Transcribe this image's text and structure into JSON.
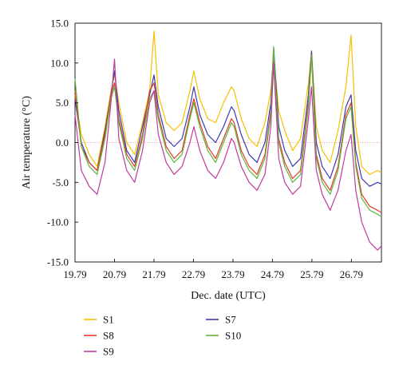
{
  "chart_data": {
    "type": "line",
    "xlabel": "Dec. date (UTC)",
    "ylabel": "Air temperature (°C)",
    "xlim": [
      19.79,
      27.55
    ],
    "ylim": [
      -15.0,
      15.0
    ],
    "x_ticks": [
      19.79,
      20.79,
      21.79,
      22.79,
      23.79,
      24.79,
      25.79,
      26.79
    ],
    "x_tick_labels": [
      "19.79",
      "20.79",
      "21.79",
      "22.79",
      "23.79",
      "24.79",
      "25.79",
      "26.79"
    ],
    "y_ticks": [
      15,
      10,
      5,
      0,
      -5,
      -10,
      -15
    ],
    "y_tick_labels": [
      "15.0",
      "10.0",
      "5.0",
      "0.0",
      "-5.0",
      "-10.0",
      "-15.0"
    ],
    "zero_line": true,
    "grid": false,
    "legend_position": "bottom",
    "x": [
      19.79,
      19.95,
      20.15,
      20.35,
      20.55,
      20.7,
      20.79,
      20.9,
      21.1,
      21.3,
      21.5,
      21.68,
      21.79,
      21.9,
      22.1,
      22.3,
      22.5,
      22.7,
      22.8,
      22.95,
      23.15,
      23.35,
      23.55,
      23.75,
      23.82,
      24.0,
      24.2,
      24.4,
      24.6,
      24.75,
      24.82,
      24.95,
      25.1,
      25.3,
      25.5,
      25.7,
      25.78,
      25.9,
      26.05,
      26.25,
      26.45,
      26.65,
      26.78,
      26.9,
      27.05,
      27.25,
      27.45,
      27.55
    ],
    "series": [
      {
        "name": "S1",
        "color": "#f5c000",
        "values": [
          6.0,
          1.0,
          -1.5,
          -3.0,
          2.0,
          6.5,
          8.5,
          5.0,
          0.0,
          -1.5,
          2.5,
          6.5,
          14.0,
          6.0,
          2.5,
          1.5,
          2.5,
          6.5,
          9.0,
          5.5,
          3.0,
          2.5,
          5.0,
          7.0,
          6.5,
          3.0,
          0.5,
          -0.5,
          2.5,
          6.5,
          11.0,
          4.0,
          1.5,
          -1.0,
          0.5,
          7.5,
          11.5,
          2.0,
          -1.0,
          -2.5,
          1.5,
          7.0,
          13.5,
          2.0,
          -3.0,
          -4.0,
          -3.5,
          -3.8
        ]
      },
      {
        "name": "S7",
        "color": "#3a3ab0",
        "values": [
          5.5,
          0.0,
          -2.5,
          -3.5,
          1.5,
          6.0,
          9.0,
          4.0,
          -1.0,
          -2.5,
          2.0,
          6.0,
          8.5,
          4.5,
          0.5,
          -0.5,
          0.5,
          4.5,
          7.0,
          3.5,
          1.0,
          0.0,
          2.0,
          4.5,
          4.0,
          1.0,
          -1.5,
          -2.5,
          0.0,
          5.0,
          12.0,
          2.0,
          -1.0,
          -3.0,
          -2.0,
          6.0,
          11.5,
          0.0,
          -3.0,
          -4.5,
          -1.5,
          4.5,
          6.0,
          -1.0,
          -4.5,
          -5.5,
          -5.0,
          -5.2
        ]
      },
      {
        "name": "S8",
        "color": "#e03c28",
        "values": [
          6.5,
          -0.5,
          -2.5,
          -3.5,
          1.0,
          6.0,
          7.5,
          3.0,
          -1.5,
          -3.0,
          1.0,
          6.5,
          7.5,
          3.5,
          -0.5,
          -2.0,
          -1.0,
          3.5,
          5.5,
          2.5,
          -0.5,
          -2.0,
          0.5,
          3.0,
          2.5,
          -1.0,
          -3.0,
          -4.0,
          -1.5,
          4.0,
          11.5,
          0.5,
          -2.5,
          -4.5,
          -3.5,
          5.0,
          11.0,
          -1.5,
          -4.5,
          -6.0,
          -3.0,
          3.5,
          5.0,
          -2.5,
          -6.5,
          -8.0,
          -8.5,
          -8.8
        ]
      },
      {
        "name": "S10",
        "color": "#5fb53c",
        "values": [
          8.0,
          -0.5,
          -3.0,
          -4.0,
          0.5,
          5.5,
          7.0,
          2.5,
          -2.0,
          -3.5,
          0.5,
          5.5,
          6.5,
          3.0,
          -1.0,
          -2.5,
          -1.5,
          3.0,
          5.0,
          2.0,
          -1.0,
          -2.5,
          0.0,
          2.5,
          2.0,
          -1.5,
          -3.5,
          -4.5,
          -2.0,
          3.5,
          12.0,
          0.0,
          -3.0,
          -5.0,
          -4.0,
          4.5,
          11.0,
          -2.0,
          -5.0,
          -6.5,
          -3.5,
          3.0,
          4.5,
          -3.0,
          -7.0,
          -8.5,
          -9.0,
          -9.3
        ]
      },
      {
        "name": "S9",
        "color": "#c03a9c",
        "values": [
          3.5,
          -3.5,
          -5.5,
          -6.5,
          -2.5,
          5.0,
          10.5,
          0.5,
          -3.5,
          -5.0,
          -1.0,
          5.0,
          6.5,
          1.0,
          -2.5,
          -4.0,
          -3.0,
          0.0,
          2.0,
          -1.0,
          -3.5,
          -4.5,
          -2.5,
          0.5,
          0.0,
          -3.0,
          -5.0,
          -6.0,
          -4.0,
          2.0,
          10.0,
          -2.0,
          -5.0,
          -6.5,
          -5.5,
          3.0,
          7.0,
          -3.5,
          -6.5,
          -8.5,
          -6.0,
          -1.0,
          1.0,
          -6.0,
          -10.0,
          -12.5,
          -13.5,
          -13.0
        ]
      }
    ]
  }
}
